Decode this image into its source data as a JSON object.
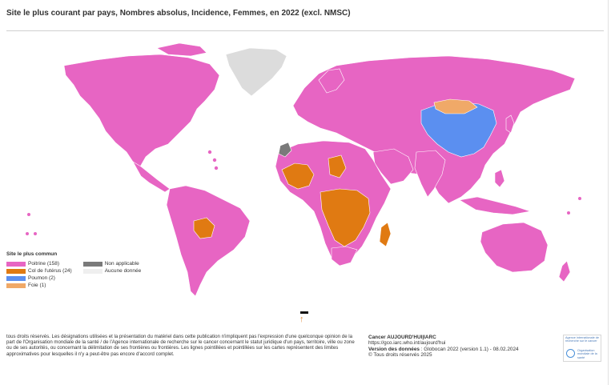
{
  "title": "Site le plus courant par pays, Nombres absolus, Incidence,  Femmes, en 2022 (excl. NMSC)",
  "legend": {
    "title": "Site le plus commun",
    "items": [
      {
        "label": "Poitrine (158)",
        "color": "#e765c3"
      },
      {
        "label": "Col de l'utérus (24)",
        "color": "#e07a12"
      },
      {
        "label": "Poumon (2)",
        "color": "#5b8ff0"
      },
      {
        "label": "Foie (1)",
        "color": "#f0a968"
      },
      {
        "label": "Non applicable",
        "color": "#7a7a7a"
      },
      {
        "label": "Aucune donnée",
        "color": "#efefef"
      }
    ]
  },
  "disclaimer": "tous droits réservés. Les désignations utilisées et la présentation du matériel dans cette publication n'impliquent pas l'expression d'une quelconque opinion de la part de l'Organisation mondiale de la santé / de l'Agence internationale de recherche sur le cancer concernant le statut juridique d'un pays, territoire, ville ou zone ou de ses autorités, ou concernant la délimitation de ses frontières ou frontières. Les lignes pointillées et pointillées sur les cartes représentent des limites approximatives pour lesquelles il n'y a peut-être pas encore d'accord complet.",
  "source": {
    "name": "Cancer AUJOURD'HUI|IARC",
    "url": "https://gco.iarc.who.int/aujourd'hui",
    "version_label": "Version des données",
    "version_value": " : Globocan 2022 (version 1.1) - 08.02.2024",
    "copyright": "© Tous droits réservés 2025"
  },
  "logo": {
    "iarc": "Agence internationale de recherche sur le cancer",
    "who": "Organisation mondiale de la santé"
  },
  "colors": {
    "breast": "#e765c3",
    "cervix": "#e07a12",
    "lung": "#5b8ff0",
    "liver": "#f0a968",
    "na": "#7a7a7a",
    "nodata": "#efefef"
  }
}
